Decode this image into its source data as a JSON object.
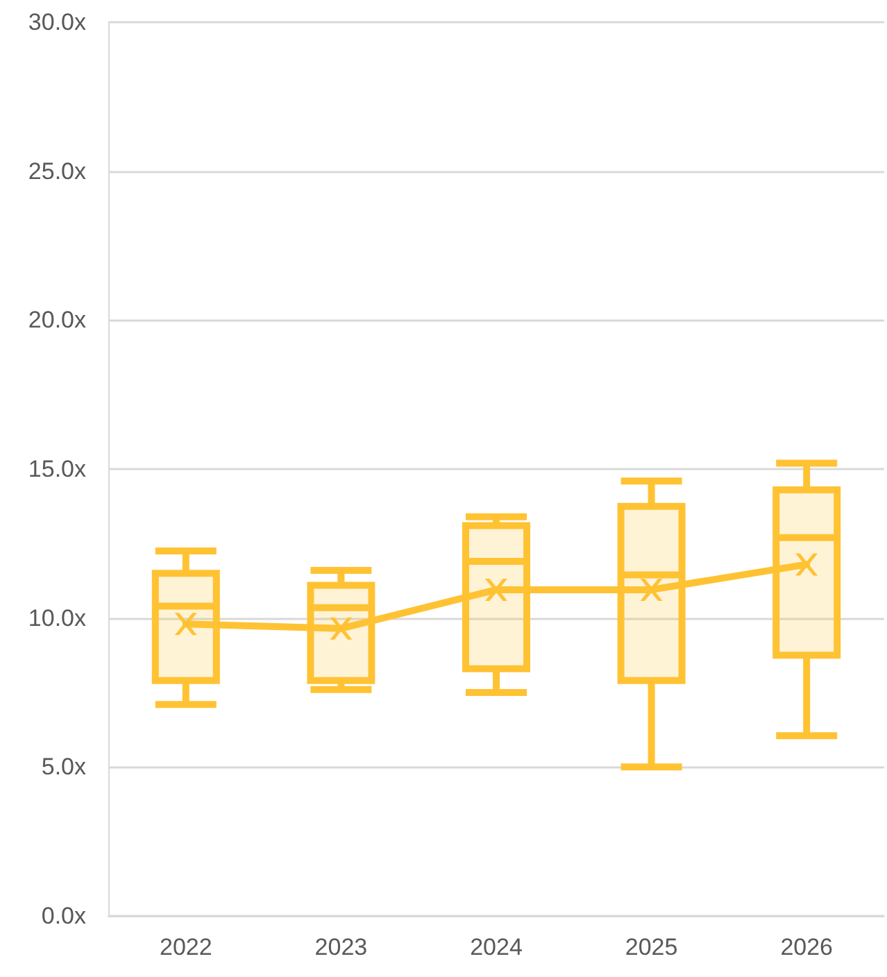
{
  "chart_data": {
    "type": "box",
    "categories": [
      "2022",
      "2023",
      "2024",
      "2025",
      "2026"
    ],
    "boxes": [
      {
        "low": 7.1,
        "q1": 7.9,
        "median": 10.4,
        "q3": 11.5,
        "high": 12.25
      },
      {
        "low": 7.6,
        "q1": 7.9,
        "median": 10.35,
        "q3": 11.1,
        "high": 11.6
      },
      {
        "low": 7.5,
        "q1": 8.3,
        "median": 11.9,
        "q3": 13.1,
        "high": 13.4
      },
      {
        "low": 5.0,
        "q1": 7.9,
        "median": 11.45,
        "q3": 13.75,
        "high": 14.6
      },
      {
        "low": 6.05,
        "q1": 8.75,
        "median": 12.7,
        "q3": 14.3,
        "high": 15.2
      }
    ],
    "series": [
      {
        "type": "line",
        "color": "#ffc233",
        "values": [
          9.8,
          9.65,
          10.95,
          10.95,
          11.8
        ]
      }
    ],
    "color": "#ffc233",
    "marker": "cross",
    "line_style": "solid",
    "grid": "y",
    "ylim": [
      0,
      30
    ],
    "yticks": [
      {
        "value": 0,
        "label": "0.0x"
      },
      {
        "value": 5,
        "label": "5.0x"
      },
      {
        "value": 10,
        "label": "10.0x"
      },
      {
        "value": 15,
        "label": "15.0x"
      },
      {
        "value": 20,
        "label": "20.0x"
      },
      {
        "value": 25,
        "label": "25.0x"
      },
      {
        "value": 30,
        "label": "30.0x"
      }
    ]
  }
}
